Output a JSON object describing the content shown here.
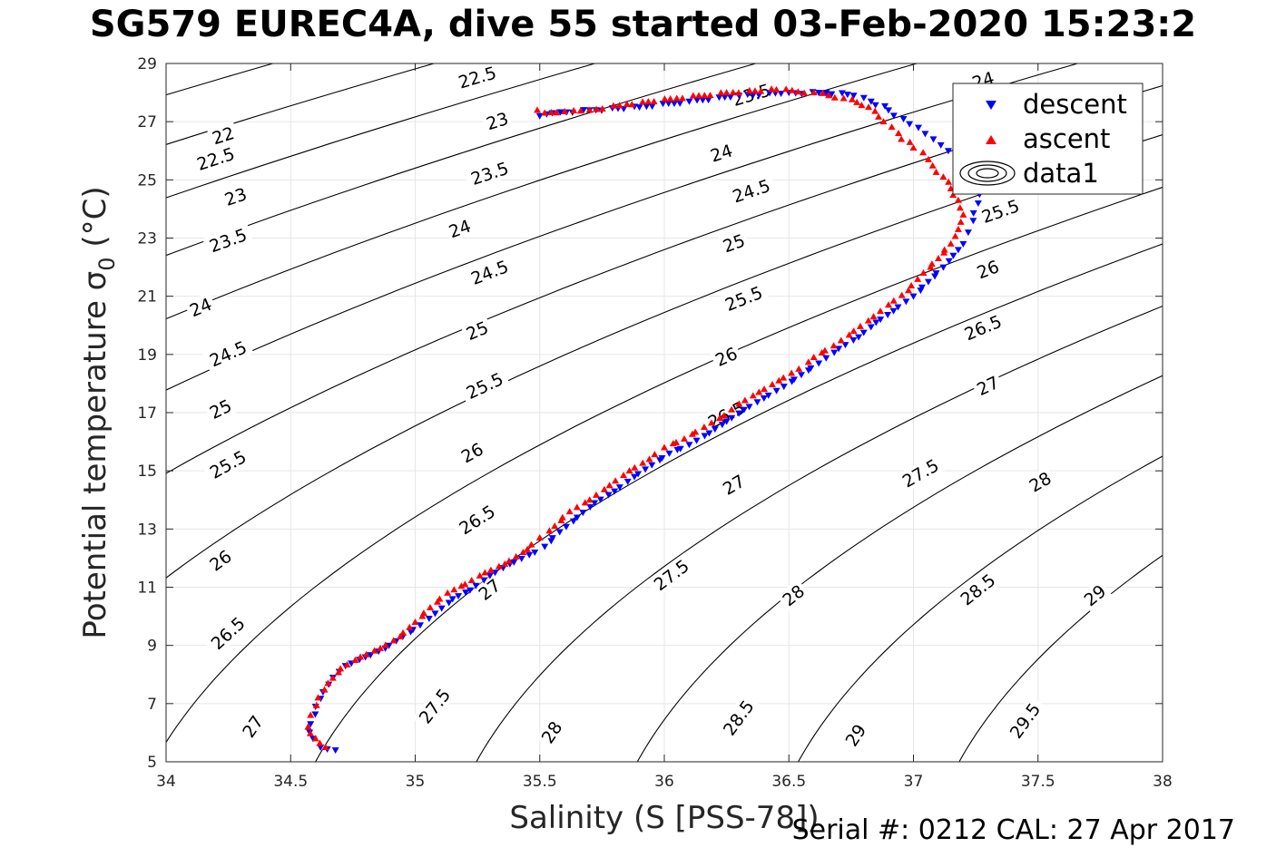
{
  "title": "SG579 EUREC4A, dive 55 started 03-Feb-2020 15:23:2",
  "footer": "Serial #: 0212  CAL: 27 Apr 2017",
  "chart_data": {
    "type": "scatter",
    "xlabel": "Salinity (S [PSS-78])",
    "ylabel": "Potential temperature σ₀ (°C)",
    "ylabel_main": "Potential temperature σ",
    "ylabel_sub": "0",
    "ylabel_tail": " (°C)",
    "xlim": [
      34,
      38
    ],
    "ylim": [
      5,
      29
    ],
    "xticks": [
      34,
      34.5,
      35,
      35.5,
      36,
      36.5,
      37,
      37.5,
      38
    ],
    "xtick_labels": [
      "34",
      "34.5",
      "35",
      "35.5",
      "36",
      "36.5",
      "37",
      "37.5",
      "38"
    ],
    "yticks": [
      5,
      7,
      9,
      11,
      13,
      15,
      17,
      19,
      21,
      23,
      25,
      27,
      29
    ],
    "ytick_labels": [
      "5",
      "7",
      "9",
      "11",
      "13",
      "15",
      "17",
      "19",
      "21",
      "23",
      "25",
      "27",
      "29"
    ],
    "grid": true,
    "legend_position": "top-right",
    "series": [
      {
        "name": "descent",
        "marker": "triangle-down",
        "color": "#0000ff",
        "x": [
          34.68,
          34.62,
          34.59,
          34.58,
          34.6,
          34.63,
          34.67,
          34.72,
          34.8,
          34.88,
          34.95,
          35.02,
          35.08,
          35.15,
          35.22,
          35.3,
          35.38,
          35.48,
          35.52,
          35.58,
          35.65,
          35.72,
          35.8,
          35.88,
          35.95,
          36.02,
          36.1,
          36.18,
          36.25,
          36.32,
          36.4,
          36.48,
          36.55,
          36.62,
          36.7,
          36.78,
          36.85,
          36.92,
          37.0,
          37.06,
          37.12,
          37.16,
          37.2,
          37.22,
          37.24,
          37.26,
          37.25,
          37.2,
          37.14,
          37.08,
          37.02,
          36.96,
          36.9,
          36.83,
          36.76,
          36.65,
          36.5,
          36.3,
          36.1,
          35.9,
          35.7,
          35.55,
          35.5
        ],
        "y": [
          5.4,
          5.5,
          5.8,
          6.3,
          6.9,
          7.4,
          7.9,
          8.3,
          8.6,
          8.9,
          9.3,
          9.7,
          10.1,
          10.6,
          10.9,
          11.4,
          11.8,
          12.2,
          12.4,
          12.9,
          13.4,
          13.9,
          14.3,
          14.8,
          15.2,
          15.6,
          15.9,
          16.3,
          16.7,
          17.1,
          17.5,
          17.9,
          18.3,
          18.7,
          19.2,
          19.6,
          20.1,
          20.5,
          21.0,
          21.5,
          22.0,
          22.4,
          22.8,
          23.2,
          23.6,
          24.2,
          25.0,
          25.6,
          26.0,
          26.4,
          26.8,
          27.1,
          27.4,
          27.7,
          27.9,
          28.0,
          28.0,
          27.9,
          27.7,
          27.5,
          27.4,
          27.3,
          27.2
        ]
      },
      {
        "name": "ascent",
        "marker": "triangle-up",
        "color": "#ff0000",
        "x": [
          34.64,
          34.6,
          34.57,
          34.58,
          34.61,
          34.65,
          34.7,
          34.78,
          34.86,
          34.94,
          35.0,
          35.06,
          35.13,
          35.2,
          35.28,
          35.36,
          35.45,
          35.5,
          35.56,
          35.62,
          35.7,
          35.78,
          35.86,
          35.94,
          36.0,
          36.08,
          36.16,
          36.24,
          36.3,
          36.38,
          36.46,
          36.54,
          36.6,
          36.68,
          36.76,
          36.84,
          36.9,
          36.98,
          37.04,
          37.1,
          37.15,
          37.18,
          37.2,
          37.18,
          37.12,
          37.06,
          37.0,
          36.94,
          36.88,
          36.82,
          36.72,
          36.6,
          36.45,
          36.25,
          36.05,
          35.85,
          35.7,
          35.6,
          35.52,
          35.49
        ],
        "y": [
          5.5,
          5.8,
          6.2,
          6.6,
          7.2,
          7.7,
          8.2,
          8.6,
          8.9,
          9.3,
          9.8,
          10.3,
          10.8,
          11.1,
          11.5,
          11.8,
          12.3,
          12.7,
          13.1,
          13.6,
          14.0,
          14.5,
          15.0,
          15.4,
          15.8,
          16.1,
          16.5,
          16.9,
          17.3,
          17.7,
          18.1,
          18.5,
          18.9,
          19.3,
          19.8,
          20.3,
          20.7,
          21.2,
          21.8,
          22.3,
          22.8,
          23.3,
          23.8,
          24.3,
          25.1,
          25.7,
          26.1,
          26.6,
          27.0,
          27.5,
          27.8,
          28.0,
          28.1,
          28.0,
          27.8,
          27.6,
          27.4,
          27.35,
          27.3,
          27.4
        ]
      }
    ],
    "legend_entries": [
      "descent",
      "ascent",
      "data1"
    ],
    "contours": {
      "name": "data1",
      "quantity": "potential density sigma-0",
      "levels": [
        22,
        22.5,
        23,
        23.5,
        24,
        24.5,
        25,
        25.5,
        26,
        26.5,
        27,
        27.5,
        28,
        28.5,
        29,
        29.5
      ],
      "labels": [
        {
          "level": "22",
          "s": 34.23,
          "t": 26.5
        },
        {
          "level": "22.5",
          "s": 34.2,
          "t": 25.7
        },
        {
          "level": "23",
          "s": 34.28,
          "t": 24.4
        },
        {
          "level": "23.5",
          "s": 34.25,
          "t": 22.9
        },
        {
          "level": "24",
          "s": 34.14,
          "t": 20.6
        },
        {
          "level": "24.5",
          "s": 34.25,
          "t": 19.0
        },
        {
          "level": "25",
          "s": 34.22,
          "t": 17.1
        },
        {
          "level": "25.5",
          "s": 34.25,
          "t": 15.2
        },
        {
          "level": "26",
          "s": 34.22,
          "t": 11.9
        },
        {
          "level": "26.5",
          "s": 34.25,
          "t": 9.4
        },
        {
          "level": "27",
          "s": 34.35,
          "t": 6.2
        },
        {
          "level": "22.5",
          "s": 35.25,
          "t": 28.5
        },
        {
          "level": "23",
          "s": 35.33,
          "t": 27.0
        },
        {
          "level": "23.5",
          "s": 35.3,
          "t": 25.2
        },
        {
          "level": "24",
          "s": 35.18,
          "t": 23.3
        },
        {
          "level": "24.5",
          "s": 35.3,
          "t": 21.8
        },
        {
          "level": "25",
          "s": 35.25,
          "t": 19.8
        },
        {
          "level": "25.5",
          "s": 35.28,
          "t": 17.9
        },
        {
          "level": "26",
          "s": 35.23,
          "t": 15.6
        },
        {
          "level": "26.5",
          "s": 35.25,
          "t": 13.3
        },
        {
          "level": "27",
          "s": 35.3,
          "t": 10.9
        },
        {
          "level": "27.5",
          "s": 35.08,
          "t": 6.9
        },
        {
          "level": "28",
          "s": 35.55,
          "t": 6.0
        },
        {
          "level": "23.5",
          "s": 36.35,
          "t": 27.9
        },
        {
          "level": "24",
          "s": 36.23,
          "t": 25.9
        },
        {
          "level": "24.5",
          "s": 36.35,
          "t": 24.6
        },
        {
          "level": "25",
          "s": 36.28,
          "t": 22.8
        },
        {
          "level": "25.5",
          "s": 36.32,
          "t": 20.9
        },
        {
          "level": "26",
          "s": 36.25,
          "t": 18.9
        },
        {
          "level": "26.5",
          "s": 36.25,
          "t": 16.9
        },
        {
          "level": "27",
          "s": 36.28,
          "t": 14.5
        },
        {
          "level": "27.5",
          "s": 36.03,
          "t": 11.4
        },
        {
          "level": "28",
          "s": 36.52,
          "t": 10.7
        },
        {
          "level": "28.5",
          "s": 36.3,
          "t": 6.5
        },
        {
          "level": "29",
          "s": 36.77,
          "t": 5.9
        },
        {
          "level": "24",
          "s": 37.28,
          "t": 28.4
        },
        {
          "level": "25.5",
          "s": 37.35,
          "t": 23.9
        },
        {
          "level": "26",
          "s": 37.3,
          "t": 21.9
        },
        {
          "level": "26.5",
          "s": 37.28,
          "t": 19.9
        },
        {
          "level": "27",
          "s": 37.3,
          "t": 17.9
        },
        {
          "level": "27.5",
          "s": 37.03,
          "t": 14.9
        },
        {
          "level": "28",
          "s": 37.51,
          "t": 14.6
        },
        {
          "level": "28.5",
          "s": 37.26,
          "t": 10.9
        },
        {
          "level": "29",
          "s": 37.73,
          "t": 10.7
        },
        {
          "level": "29.5",
          "s": 37.45,
          "t": 6.4
        }
      ]
    }
  }
}
